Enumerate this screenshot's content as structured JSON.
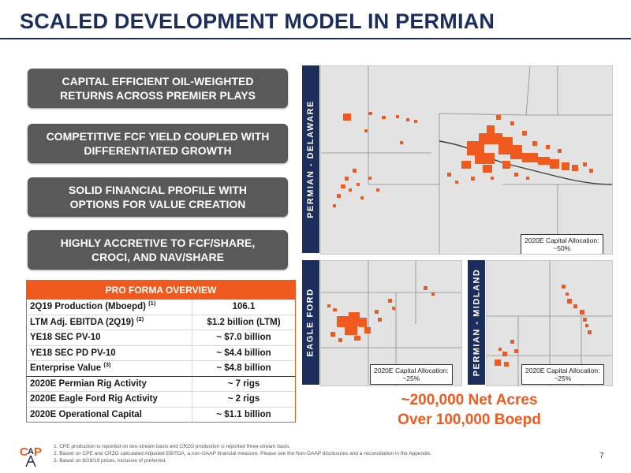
{
  "title": "SCALED DEVELOPMENT MODEL IN PERMIAN",
  "pills": [
    "CAPITAL EFFICIENT OIL-WEIGHTED RETURNS ACROSS PREMIER PLAYS",
    "COMPETITIVE FCF YIELD COUPLED WITH DIFFERENTIATED GROWTH",
    "SOLID FINANCIAL PROFILE WITH OPTIONS FOR VALUE CREATION",
    "HIGHLY ACCRETIVE TO FCF/SHARE, CROCI, AND NAV/SHARE"
  ],
  "table": {
    "header": "PRO FORMA OVERVIEW",
    "rows": [
      {
        "label": "2Q19 Production (Mboepd)",
        "sup": "(1)",
        "value": "106.1"
      },
      {
        "label": "LTM Adj. EBITDA (2Q19)",
        "sup": "(2)",
        "value": "$1.2 billion (LTM)"
      },
      {
        "label": "YE18 SEC PV-10",
        "sup": "",
        "value": "~ $7.0 billion"
      },
      {
        "label": "YE18 SEC PD PV-10",
        "sup": "",
        "value": "~ $4.4 billion"
      },
      {
        "label": "Enterprise Value",
        "sup": "(3)",
        "value": "~ $4.8 billion"
      },
      {
        "label": "2020E Permian Rig Activity",
        "sup": "",
        "value": "~ 7 rigs"
      },
      {
        "label": "2020E Eagle Ford Rig Activity",
        "sup": "",
        "value": "~ 2 rigs"
      },
      {
        "label": "2020E Operational Capital",
        "sup": "",
        "value": "~ $1.1 billion"
      }
    ]
  },
  "maps": {
    "delaware": {
      "label": "PERMIAN - DELAWARE",
      "cap_line1": "2020E Capital Allocation:",
      "cap_line2": "~50%"
    },
    "eagle_ford": {
      "label": "EAGLE FORD",
      "cap_line1": "2020E Capital Allocation:",
      "cap_line2": "~25%"
    },
    "midland": {
      "label": "PERMIAN - MIDLAND",
      "cap_line1": "2020E Capital Allocation:",
      "cap_line2": "~25%"
    }
  },
  "acres": {
    "line1": "~200,000 Net Acres",
    "line2": "Over 100,000 Boepd"
  },
  "footnotes": [
    "1.   CPE production is reported on two-stream basis and CRZO production is reported three-stream basis.",
    "2.   Based on CPE and CRZO calculated Adjusted EBITDA, a non-GAAP financial measure. Please see the Non-GAAP disclosures and a reconciliation in the Appendix.",
    "3.   Based on 8/28/19 prices, inclusive of preferred."
  ],
  "page_number": "7",
  "colors": {
    "navy": "#1c2e5c",
    "orange": "#f05a1e",
    "pill_gray": "#595959"
  }
}
